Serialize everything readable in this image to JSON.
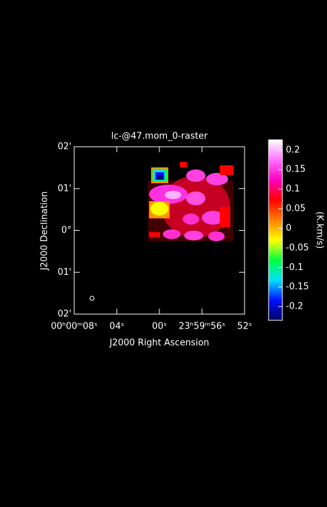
{
  "chart_data": {
    "type": "raster",
    "title": "lc-@47.mom_0-raster",
    "xlabel": "J2000 Right Ascension",
    "ylabel": "J2000 Declination",
    "xlim": [
      8,
      -8
    ],
    "xticks": [
      {
        "value": 8,
        "label": "00ʰ00ᵐ08ˢ"
      },
      {
        "value": 4,
        "label": "04ˢ"
      },
      {
        "value": 0,
        "label": "00ˢ"
      },
      {
        "value": -4,
        "label": "23ʰ59ᵐ56ˢ"
      },
      {
        "value": -8,
        "label": "52ˢ"
      }
    ],
    "ylim": [
      -2,
      2
    ],
    "yticks": [
      {
        "value": 2,
        "label": "02'"
      },
      {
        "value": 1,
        "label": "01'"
      },
      {
        "value": 0,
        "label": "0°"
      },
      {
        "value": -1,
        "label": "01'"
      },
      {
        "value": -2,
        "label": "02'"
      }
    ],
    "colorbar": {
      "label": "(K.km/s)",
      "clim": [
        -0.235,
        0.226
      ],
      "ticks": [
        0.2,
        0.15,
        0.1,
        0.05,
        0,
        -0.05,
        -0.1,
        -0.15,
        -0.2
      ],
      "colors": [
        "#000060",
        "#0010ff",
        "#00e0ff",
        "#00ff40",
        "#ffff00",
        "#ff8000",
        "#ff0000",
        "#ff00c0",
        "#ff70ff",
        "#ffffff"
      ]
    }
  }
}
